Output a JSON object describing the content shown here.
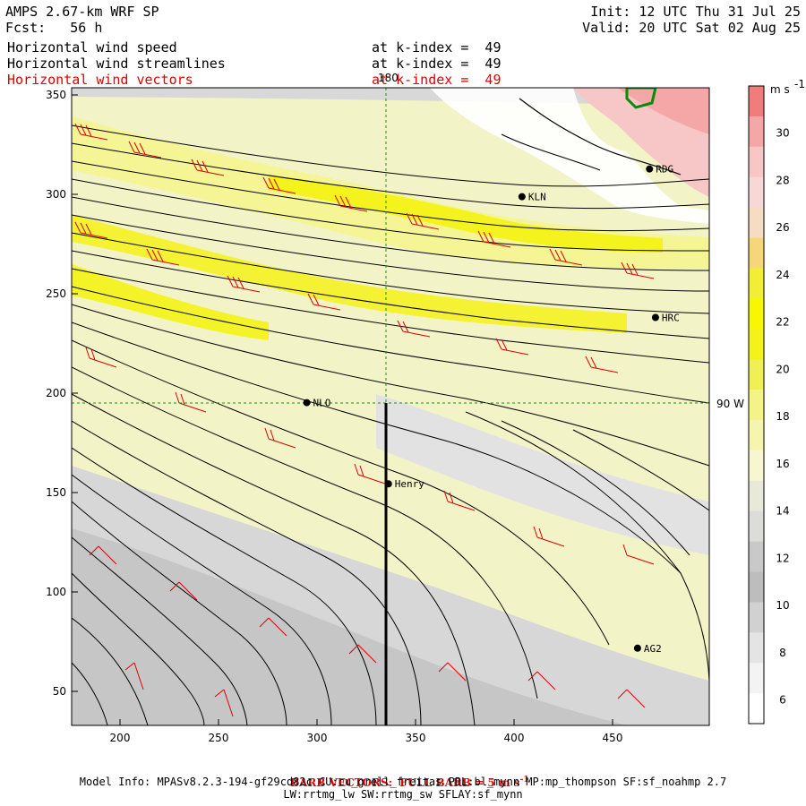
{
  "header": {
    "model": "AMPS 2.67-km WRF SP",
    "fcst": "Fcst:   56 h",
    "init": "Init: 12 UTC Thu 31 Jul 25",
    "valid": "Valid: 20 UTC Sat 02 Aug 25",
    "fields": [
      {
        "name": "Horizontal wind speed",
        "level": "at k-index =  49",
        "color": "#000000"
      },
      {
        "name": "Horizontal wind streamlines",
        "level": "at k-index =  49",
        "color": "#000000"
      },
      {
        "name": "Horizontal wind vectors",
        "level": "at k-index =  49",
        "color": "#e00000"
      }
    ]
  },
  "axes": {
    "x_ticks": [
      "200",
      "250",
      "300",
      "350",
      "400",
      "450"
    ],
    "y_ticks": [
      "350",
      "300",
      "250",
      "200",
      "150",
      "100",
      "50"
    ],
    "meridian_label": "180",
    "parallel_label": "90 W"
  },
  "stations": [
    {
      "id": "KLN",
      "x": 401,
      "y": 300
    },
    {
      "id": "RDG",
      "x": 465,
      "y": 314
    },
    {
      "id": "HRC",
      "x": 468,
      "y": 239
    },
    {
      "id": "NLO",
      "x": 293,
      "y": 196
    },
    {
      "id": "Henry",
      "x": 334,
      "y": 155
    },
    {
      "id": "AG2",
      "x": 459,
      "y": 72
    }
  ],
  "colorbar": {
    "unit": "m s",
    "unit_exp": "-1",
    "labels": [
      "30",
      "28",
      "26",
      "24",
      "22",
      "20",
      "18",
      "16",
      "14",
      "12",
      "10",
      "8",
      "6"
    ],
    "colors": [
      "#f27c7c",
      "#f5a7a7",
      "#f9c6c6",
      "#f8d7d7",
      "#f7dcc4",
      "#f5d77a",
      "#f2ee36",
      "#f7f700",
      "#f3f31a",
      "#f0f052",
      "#f3f388",
      "#f5f5b0",
      "#f7f7cf",
      "#e9e9d9",
      "#dcdcd8",
      "#c9c9c9",
      "#bdbdbd",
      "#d1d1d1",
      "#e4e4e4",
      "#f3f3f3",
      "#ffffff"
    ]
  },
  "footer": {
    "barb": "BARB VECTORS:  FULL BARB = 5 m s",
    "barb_exp": "-1",
    "model_info": "Model Info: MPASv8.2.3-194-gf29cd82c CU:cu_grell_freitas PBL:bl_mynn MP:mp_thompson SF:sf_noahmp 2.7",
    "schemes": "LW:rrtmg_lw SW:rrtmg_sw SFLAY:sf_mynn"
  }
}
